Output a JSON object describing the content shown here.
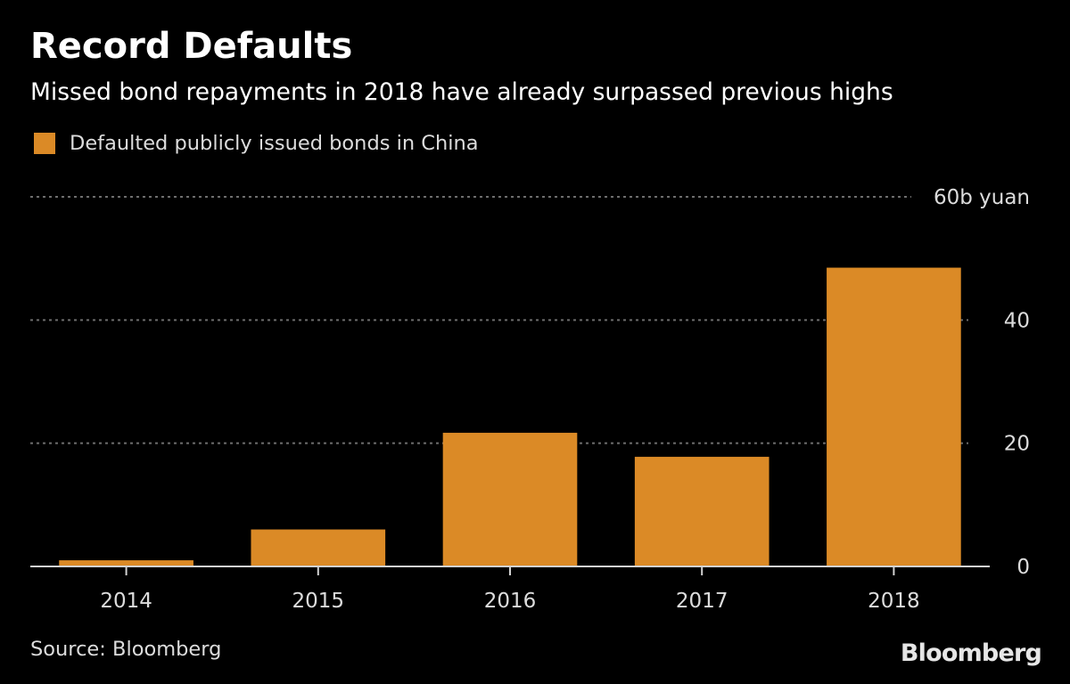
{
  "colors": {
    "background": "#000000",
    "bar": "#db8a26",
    "gridline": "#6e6e6e",
    "axis": "#d2d2d2",
    "text": "#dcdcdc"
  },
  "chart_data": {
    "type": "bar",
    "title": "Record Defaults",
    "subtitle": "Missed bond repayments in 2018 have already surpassed previous highs",
    "legend": [
      "Defaulted publicly issued bonds in China"
    ],
    "legend_position": "top-left",
    "categories": [
      "2014",
      "2015",
      "2016",
      "2017",
      "2018"
    ],
    "series": [
      {
        "name": "Defaulted publicly issued bonds in China",
        "values": [
          1,
          6,
          21.7,
          17.8,
          48.5
        ]
      }
    ],
    "ylim": [
      0,
      60
    ],
    "yticks": [
      {
        "value": 0,
        "label": "0"
      },
      {
        "value": 20,
        "label": "20"
      },
      {
        "value": 40,
        "label": "40"
      },
      {
        "value": 60,
        "label": "60b yuan"
      }
    ],
    "grid": true,
    "ylabel": "",
    "xlabel": "",
    "source": "Source: Bloomberg"
  },
  "branding": {
    "logo_text": "Bloomberg"
  }
}
